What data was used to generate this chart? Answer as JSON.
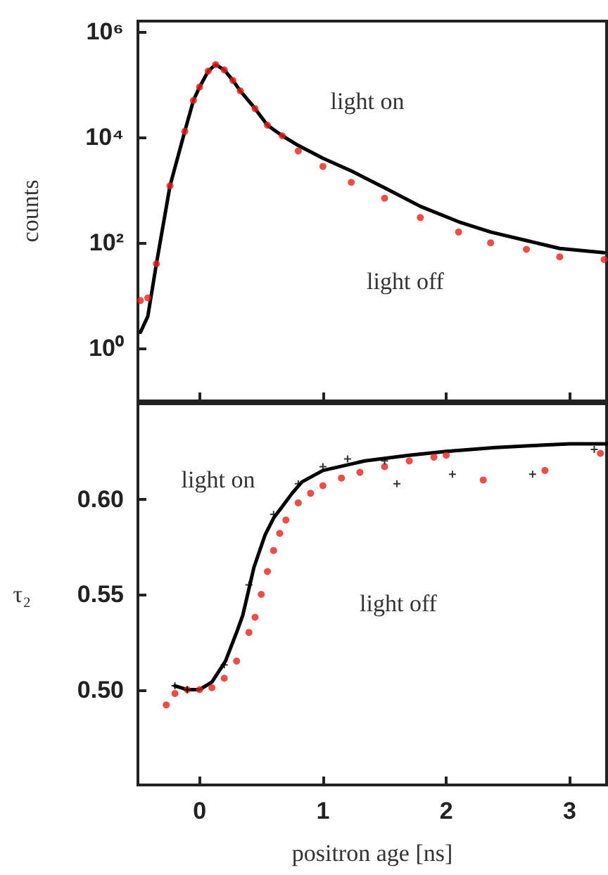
{
  "chart_data": [
    {
      "type": "line",
      "ylabel": "counts",
      "log": true,
      "xlim": [
        -0.5,
        3.3
      ],
      "xticks": [
        0,
        1,
        2,
        3
      ],
      "ylim": [
        0.1,
        1600000
      ],
      "yticks": [
        {
          "value": 1,
          "label": "10⁰"
        },
        {
          "value": 100,
          "label": "10²"
        },
        {
          "value": 10000,
          "label": "10⁴"
        },
        {
          "value": 1000000,
          "label": "10⁶"
        }
      ],
      "tick_labels": "y",
      "series": [
        {
          "type": "scatter",
          "marker": "circle",
          "color": "#e8201c",
          "x": [
            -0.48,
            -0.42,
            -0.35,
            -0.24,
            -0.12,
            -0.05,
            0,
            0.07,
            0.13,
            0.2,
            0.27,
            0.33,
            0.45,
            0.55,
            0.67,
            0.8,
            1.0,
            1.23,
            1.5,
            1.79,
            2.1,
            2.36,
            2.65,
            2.92,
            3.28
          ],
          "values": [
            8,
            9,
            40,
            1200,
            13000,
            50000,
            90000,
            180000,
            240000,
            190000,
            120000,
            76000,
            35000,
            17000,
            10700,
            5500,
            2800,
            1400,
            700,
            300,
            160,
            100,
            75,
            54,
            48
          ]
        },
        {
          "marker": "none",
          "color": "#000000",
          "x": [
            -0.48,
            -0.42,
            -0.35,
            -0.24,
            -0.12,
            -0.05,
            0,
            0.07,
            0.13,
            0.2,
            0.27,
            0.33,
            0.45,
            0.55,
            0.67,
            0.8,
            1.0,
            1.23,
            1.5,
            1.79,
            2.1,
            2.36,
            2.65,
            2.92,
            3.28
          ],
          "values": [
            2,
            4,
            40,
            1200,
            13000,
            50000,
            90000,
            180000,
            240000,
            190000,
            120000,
            76000,
            35000,
            17000,
            10700,
            7000,
            4000,
            2300,
            1100,
            490,
            250,
            160,
            110,
            78,
            65
          ]
        }
      ],
      "annotations": [
        "light on",
        "light off"
      ]
    },
    {
      "type": "line",
      "xlabel": "positron age [ns]",
      "ylabel": "τ₂",
      "xlim": [
        -0.5,
        3.3
      ],
      "xticks": [
        0,
        1,
        2,
        3
      ],
      "ylim": [
        0.45,
        0.65
      ],
      "yticks": [
        {
          "value": 0.5,
          "label": "0.50"
        },
        {
          "value": 0.55,
          "label": "0.55"
        },
        {
          "value": 0.6,
          "label": "0.60"
        }
      ],
      "series": [
        {
          "type": "scatter",
          "marker": "circle",
          "color": "#e8201c",
          "x": [
            -0.27,
            -0.2,
            -0.1,
            0,
            0.1,
            0.2,
            0.3,
            0.4,
            0.45,
            0.5,
            0.55,
            0.6,
            0.65,
            0.7,
            0.8,
            0.9,
            1.0,
            1.15,
            1.3,
            1.5,
            1.7,
            1.9,
            2.0,
            2.3,
            2.8,
            3.25
          ],
          "values": [
            0.492,
            0.498,
            0.5,
            0.5,
            0.501,
            0.506,
            0.515,
            0.53,
            0.538,
            0.55,
            0.562,
            0.573,
            0.582,
            0.589,
            0.598,
            0.603,
            0.607,
            0.611,
            0.614,
            0.617,
            0.62,
            0.622,
            0.623,
            0.61,
            0.615,
            0.624
          ]
        },
        {
          "type": "scatter",
          "marker": "cross",
          "color": "#000000",
          "x": [
            -0.2,
            -0.1,
            0.2,
            0.4,
            0.6,
            0.8,
            1.0,
            1.2,
            1.5,
            1.6,
            2.05,
            2.7,
            3.2
          ],
          "values": [
            0.502,
            0.5,
            0.513,
            0.555,
            0.592,
            0.608,
            0.617,
            0.621,
            0.62,
            0.608,
            0.613,
            0.613,
            0.626
          ]
        },
        {
          "marker": "none",
          "color": "#000000",
          "x": [
            -0.2,
            -0.1,
            0,
            0.1,
            0.21,
            0.3,
            0.35,
            0.44,
            0.53,
            0.6,
            0.67,
            0.75,
            0.83,
            1.0,
            1.34,
            1.7,
            2.0,
            2.4,
            2.7,
            3.0,
            3.3
          ],
          "values": [
            0.502,
            0.5,
            0.5,
            0.504,
            0.515,
            0.53,
            0.539,
            0.564,
            0.581,
            0.59,
            0.596,
            0.603,
            0.609,
            0.615,
            0.62,
            0.623,
            0.625,
            0.627,
            0.628,
            0.629,
            0.629
          ]
        }
      ],
      "annotations": [
        "light on",
        "light off"
      ]
    }
  ]
}
